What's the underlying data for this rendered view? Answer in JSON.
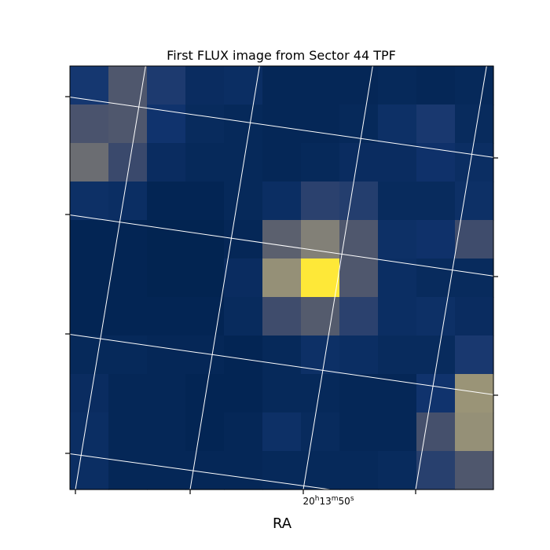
{
  "chart_data": {
    "type": "heatmap",
    "title": "First FLUX image from Sector 44 TPF",
    "xlabel": "RA",
    "ylabel": "",
    "colormap": "cividis",
    "colormap_colors": [
      "#00224e",
      "#123570",
      "#3b496c",
      "#575d6d",
      "#707173",
      "#8a8779",
      "#a69d75",
      "#c4b56c",
      "#e4cf5b",
      "#fee838"
    ],
    "grid": true,
    "grid_color": "#ffffff",
    "x_tick_labels": [
      "",
      "",
      "20h13m50s",
      "",
      ""
    ],
    "values_normalized": [
      [
        0.12,
        0.3,
        0.14,
        0.06,
        0.07,
        0.03,
        0.03,
        0.03,
        0.04,
        0.03,
        0.04
      ],
      [
        0.28,
        0.3,
        0.1,
        0.05,
        0.04,
        0.03,
        0.03,
        0.04,
        0.08,
        0.13,
        0.05
      ],
      [
        0.42,
        0.22,
        0.06,
        0.04,
        0.04,
        0.03,
        0.04,
        0.06,
        0.06,
        0.09,
        0.07
      ],
      [
        0.08,
        0.07,
        0.02,
        0.02,
        0.04,
        0.07,
        0.18,
        0.16,
        0.05,
        0.05,
        0.08
      ],
      [
        0.02,
        0.02,
        0.01,
        0.01,
        0.03,
        0.35,
        0.52,
        0.3,
        0.08,
        0.09,
        0.24
      ],
      [
        0.02,
        0.02,
        0.01,
        0.01,
        0.06,
        0.6,
        1.0,
        0.3,
        0.07,
        0.05,
        0.05
      ],
      [
        0.02,
        0.02,
        0.02,
        0.02,
        0.05,
        0.24,
        0.32,
        0.18,
        0.07,
        0.08,
        0.06
      ],
      [
        0.04,
        0.04,
        0.03,
        0.03,
        0.02,
        0.04,
        0.08,
        0.07,
        0.05,
        0.05,
        0.13
      ],
      [
        0.06,
        0.03,
        0.03,
        0.02,
        0.02,
        0.04,
        0.04,
        0.03,
        0.03,
        0.1,
        0.62
      ],
      [
        0.07,
        0.03,
        0.03,
        0.02,
        0.03,
        0.08,
        0.05,
        0.03,
        0.03,
        0.26,
        0.6
      ],
      [
        0.07,
        0.03,
        0.03,
        0.03,
        0.03,
        0.04,
        0.04,
        0.04,
        0.05,
        0.17,
        0.3
      ]
    ]
  }
}
